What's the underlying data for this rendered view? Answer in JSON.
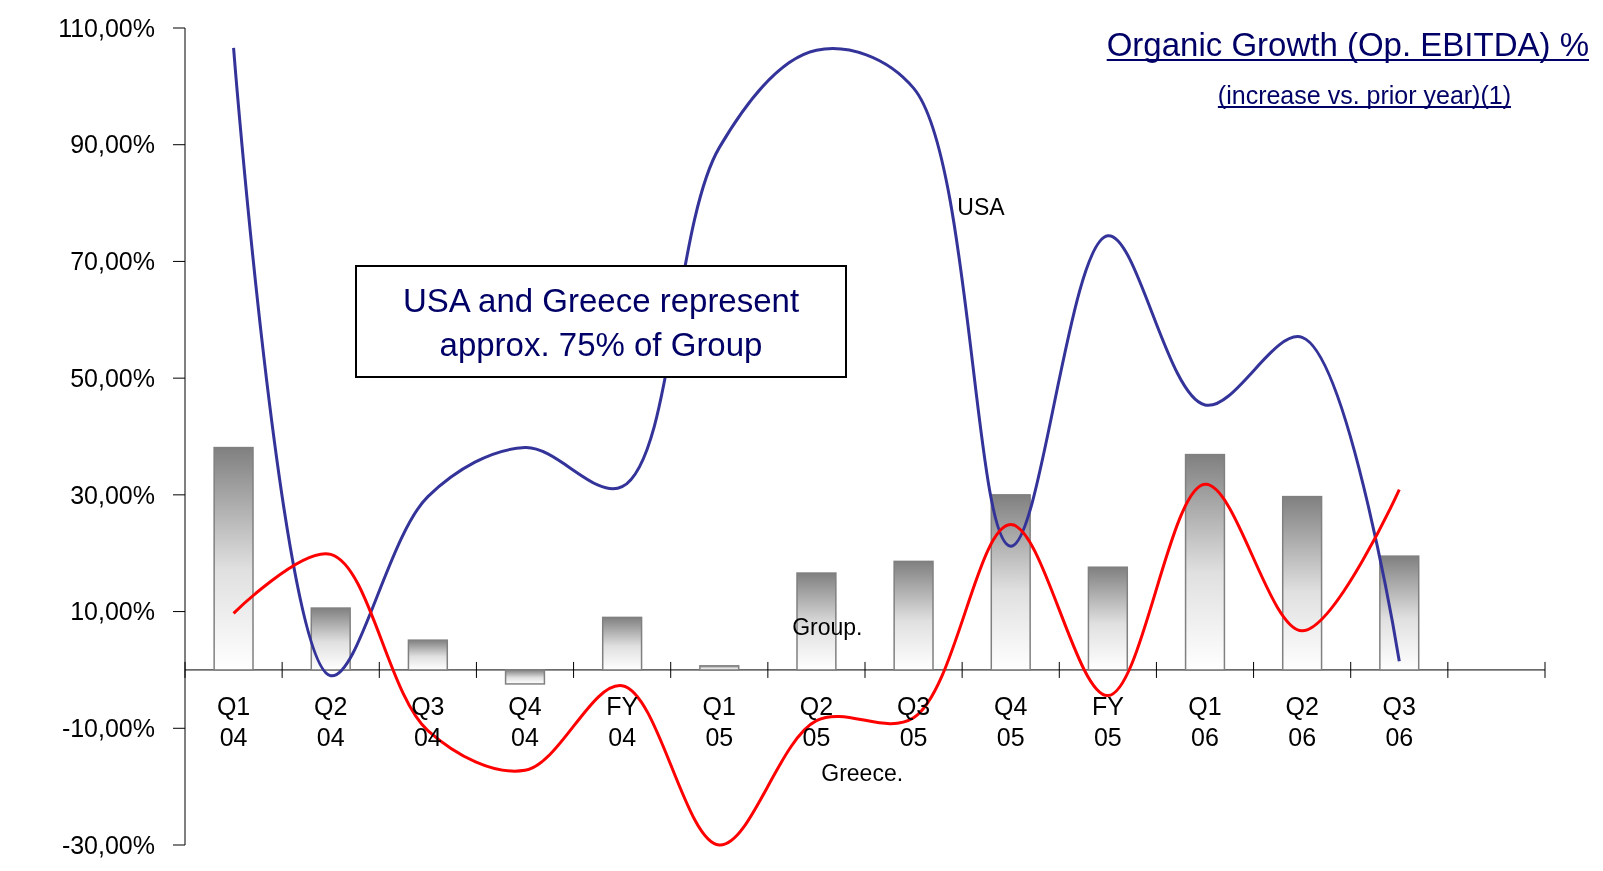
{
  "chart_data": {
    "type": "bar",
    "title": "Organic Growth (Op. EBITDA) %",
    "subtitle": "(increase vs. prior year)(1)",
    "categories": [
      "Q1 04",
      "Q2 04",
      "Q3 04",
      "Q4 04",
      "FY 04",
      "Q1 05",
      "Q2 05",
      "Q3 05",
      "Q4 05",
      "FY 05",
      "Q1 06",
      "Q2 06",
      "Q3 06",
      null
    ],
    "series": [
      {
        "name": "Group.",
        "color": "#808080",
        "values": [
          38.1,
          10.6,
          5.1,
          -2.4,
          9.0,
          0.7,
          16.6,
          18.6,
          30.0,
          17.6,
          36.9,
          29.7,
          19.5,
          null
        ]
      },
      {
        "name": "USA",
        "type": "line",
        "color": "#333399",
        "values": [
          106.6,
          -1.0,
          29.7,
          38.1,
          31.4,
          89.5,
          106.2,
          99.7,
          21.2,
          74.4,
          45.4,
          57.0,
          1.5,
          null
        ]
      },
      {
        "name": "Greece.",
        "type": "line",
        "color": "#ff0000",
        "values": [
          9.7,
          19.8,
          -10.4,
          -17.2,
          -2.7,
          -30.0,
          -8.7,
          -8.2,
          24.9,
          -4.4,
          31.8,
          6.7,
          30.9,
          null
        ]
      }
    ],
    "ylim": [
      -30,
      110
    ],
    "yticks": [
      {
        "value": -30,
        "label": "-30,00%"
      },
      {
        "value": -10,
        "label": "-10,00%"
      },
      {
        "value": 10,
        "label": "10,00%"
      },
      {
        "value": 30,
        "label": "30,00%"
      },
      {
        "value": 50,
        "label": "50,00%"
      },
      {
        "value": 70,
        "label": "70,00%"
      },
      {
        "value": 90,
        "label": "90,00%"
      },
      {
        "value": 110,
        "label": "110,00%"
      }
    ],
    "annotations": [
      "USA and Greece represent approx. 75% of Group"
    ],
    "grid": false,
    "legend": false,
    "marker": "none",
    "line_style": "solid"
  }
}
